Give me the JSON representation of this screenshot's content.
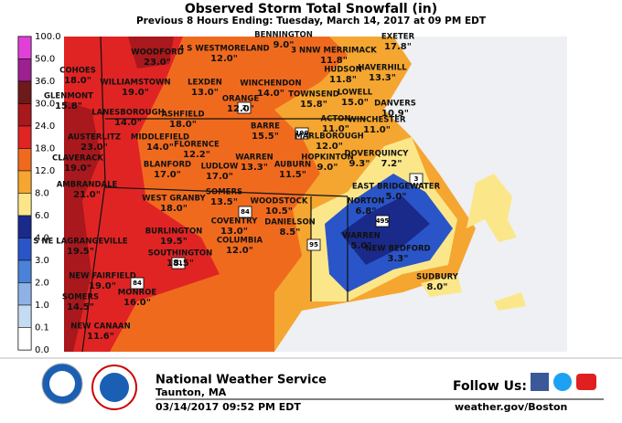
{
  "header": {
    "title": "Observed Storm Total Snowfall (in)",
    "subtitle": "Previous 8 Hours Ending: Tuesday, March 14, 2017 at 09 PM EDT"
  },
  "legend": {
    "labels": [
      "100.0",
      "50.0",
      "36.0",
      "30.0",
      "24.0",
      "18.0",
      "12.0",
      "8.0",
      "6.0",
      "4.0",
      "3.0",
      "2.0",
      "1.0",
      "0.1",
      "0.0"
    ],
    "colors": [
      "#e040d8",
      "#9c2090",
      "#6e1a1a",
      "#a8181c",
      "#e02424",
      "#f06a1e",
      "#f5a630",
      "#fbe78a",
      "#1a2a8a",
      "#2a55c8",
      "#4a82d8",
      "#8eb2e6",
      "#c4dbf2",
      "#ffffff"
    ]
  },
  "stations": [
    {
      "name": "WOODFORD",
      "value": "23.0\""
    },
    {
      "name": "4 S WESTMORELAND",
      "value": "12.0\""
    },
    {
      "name": "BENNINGTON",
      "value": "9.0\""
    },
    {
      "name": "3 NNW MERRIMACK",
      "value": "11.8\""
    },
    {
      "name": "EXETER",
      "value": "17.8\""
    },
    {
      "name": "COHOES",
      "value": "18.0\""
    },
    {
      "name": "WILLIAMSTOWN",
      "value": "19.0\""
    },
    {
      "name": "LEXDEN",
      "value": "13.0\""
    },
    {
      "name": "WINCHENDON",
      "value": "14.0\""
    },
    {
      "name": "HUDSON",
      "value": "11.8\""
    },
    {
      "name": "HAVERHILL",
      "value": "13.3\""
    },
    {
      "name": "GLENMONT",
      "value": "15.8\""
    },
    {
      "name": "LANESBOROUGH",
      "value": "14.0\""
    },
    {
      "name": "ASHFIELD",
      "value": "18.0\""
    },
    {
      "name": "ORANGE",
      "value": "12.0\""
    },
    {
      "name": "TOWNSEND",
      "value": "15.8\""
    },
    {
      "name": "LOWELL",
      "value": "15.0\""
    },
    {
      "name": "DANVERS",
      "value": "10.9\""
    },
    {
      "name": "BARRE",
      "value": "15.5\""
    },
    {
      "name": "ACTON",
      "value": "11.0\""
    },
    {
      "name": "WINCHESTER",
      "value": "11.0\""
    },
    {
      "name": "AUSTERLITZ",
      "value": "23.0\""
    },
    {
      "name": "MIDDLEFIELD",
      "value": "14.0\""
    },
    {
      "name": "FLORENCE",
      "value": "12.2\""
    },
    {
      "name": "MARLBOROUGH",
      "value": "12.0\""
    },
    {
      "name": "CLAVERACK",
      "value": "19.0\""
    },
    {
      "name": "BLANFORD",
      "value": "17.0\""
    },
    {
      "name": "LUDLOW",
      "value": "17.0\""
    },
    {
      "name": "WARREN",
      "value": "13.3\""
    },
    {
      "name": "AUBURN",
      "value": "11.5\""
    },
    {
      "name": "HOPKINTON",
      "value": "9.0\""
    },
    {
      "name": "DOVER",
      "value": "9.3\""
    },
    {
      "name": "QUINCY",
      "value": "7.2\""
    },
    {
      "name": "AMBRANDALE",
      "value": "21.0\""
    },
    {
      "name": "WEST GRANBY",
      "value": "18.0\""
    },
    {
      "name": "SOMERS",
      "value": "13.5\""
    },
    {
      "name": "WOODSTOCK",
      "value": "10.5\""
    },
    {
      "name": "EAST BRIDGEWATER",
      "value": "5.0\""
    },
    {
      "name": "NORTON",
      "value": "6.8\""
    },
    {
      "name": "COVENTRY",
      "value": "13.0\""
    },
    {
      "name": "DANIELSON",
      "value": "8.5\""
    },
    {
      "name": "S NE LAGRANGEVILLE",
      "value": "19.5\""
    },
    {
      "name": "BURLINGTON",
      "value": "19.5\""
    },
    {
      "name": "COLUMBIA",
      "value": "12.0\""
    },
    {
      "name": "WARREN",
      "value": "5.0\""
    },
    {
      "name": "NEW BEDFORD",
      "value": "3.3\""
    },
    {
      "name": "SOUTHINGTON",
      "value": "18.5\""
    },
    {
      "name": "NEW FAIRFIELD",
      "value": "19.0\""
    },
    {
      "name": "MONROE",
      "value": "16.0\""
    },
    {
      "name": "SUDBURY",
      "value": "8.0\""
    },
    {
      "name": "SOMERS",
      "value": "14.5\""
    },
    {
      "name": "NEW CANAAN",
      "value": "11.6\""
    }
  ],
  "shields": [
    "2",
    "3",
    "190",
    "84",
    "84",
    "91",
    "95",
    "495"
  ],
  "footer": {
    "org": "National Weather Service",
    "office": "Taunton, MA",
    "issued": "03/14/2017 09:52 PM EDT",
    "follow": "Follow Us:",
    "url": "weather.gov/Boston"
  }
}
